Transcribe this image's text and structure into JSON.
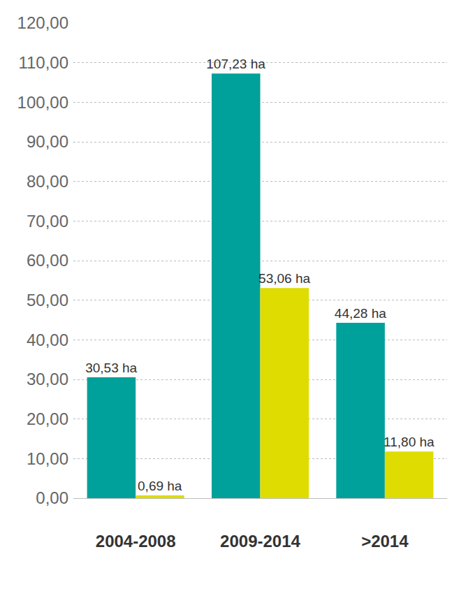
{
  "chart_data": {
    "type": "bar",
    "categories": [
      "2004-2008",
      "2009-2014",
      ">2014"
    ],
    "series": [
      {
        "color": "#00a19a",
        "values": [
          30.53,
          107.23,
          44.28
        ],
        "value_labels": [
          "30,53 ha",
          "107,23 ha",
          "44,28 ha"
        ]
      },
      {
        "color": "#dedc00",
        "values": [
          0.69,
          53.06,
          11.8
        ],
        "value_labels": [
          "0,69 ha",
          "53,06 ha",
          "11,80 ha"
        ]
      }
    ],
    "ylim": [
      0,
      120
    ],
    "yticks": [
      {
        "value": 0,
        "label": "0,00"
      },
      {
        "value": 10,
        "label": "10,00"
      },
      {
        "value": 20,
        "label": "20,00"
      },
      {
        "value": 30,
        "label": "30,00"
      },
      {
        "value": 40,
        "label": "40,00"
      },
      {
        "value": 50,
        "label": "50,00"
      },
      {
        "value": 60,
        "label": "60,00"
      },
      {
        "value": 70,
        "label": "70,00"
      },
      {
        "value": 80,
        "label": "80,00"
      },
      {
        "value": 90,
        "label": "90,00"
      },
      {
        "value": 100,
        "label": "100,00"
      },
      {
        "value": 110,
        "label": "110,00"
      },
      {
        "value": 120,
        "label": "120,00"
      }
    ],
    "grid": true,
    "data_labels": true
  }
}
